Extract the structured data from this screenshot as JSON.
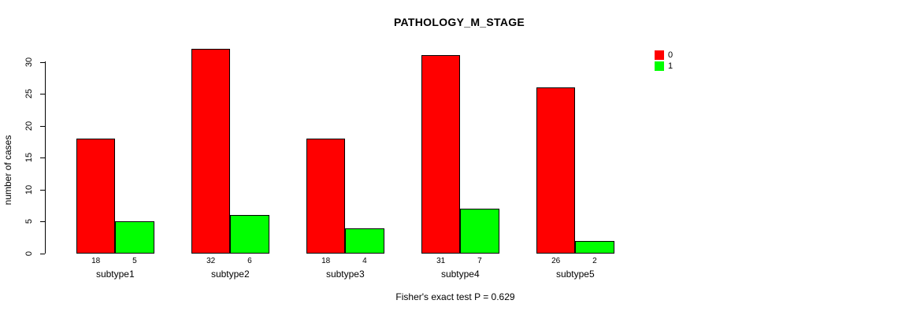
{
  "title": "PATHOLOGY_M_STAGE",
  "y_axis": {
    "label": "number of cases",
    "ticks": [
      0,
      5,
      10,
      15,
      20,
      25,
      30
    ]
  },
  "legend": {
    "items": [
      {
        "label": "0",
        "color": "#FF0000"
      },
      {
        "label": "1",
        "color": "#00FF00"
      }
    ]
  },
  "footer": "Fisher's exact test P = 0.629",
  "chart_data": {
    "type": "bar",
    "title": "PATHOLOGY_M_STAGE",
    "categories": [
      "subtype1",
      "subtype2",
      "subtype3",
      "subtype4",
      "subtype5"
    ],
    "series": [
      {
        "name": "0",
        "color": "#FF0000",
        "values": [
          18,
          32,
          18,
          31,
          26
        ]
      },
      {
        "name": "1",
        "color": "#00FF00",
        "values": [
          5,
          6,
          4,
          7,
          2
        ]
      }
    ],
    "xlabel": "",
    "ylabel": "number of cases",
    "ylim": [
      0,
      30
    ],
    "yticks": [
      0,
      5,
      10,
      15,
      20,
      25,
      30
    ],
    "bar_value_labels": true,
    "annotation": "Fisher's exact test P = 0.629",
    "legend_position": "top-right",
    "grid": false
  }
}
